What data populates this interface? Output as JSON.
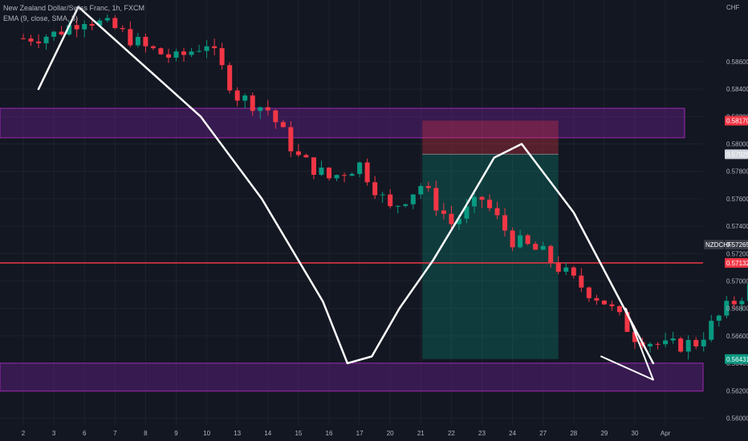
{
  "header": {
    "symbol_line": "New Zealand Dollar/Swiss Franc, 1h, FXCM",
    "indicator_line": "EMA (9, close, SMA, 5)"
  },
  "chart_data": {
    "type": "candlestick",
    "symbol": "NZDCHF",
    "currency": "CHF",
    "timeframe": "1h",
    "ylim": [
      0.5595,
      0.5905
    ],
    "y_ticks": [
      "0.58600",
      "0.58400",
      "0.58200",
      "0.58000",
      "0.57800",
      "0.57600",
      "0.57400",
      "0.57200",
      "0.57000",
      "0.56800",
      "0.56600",
      "0.56400",
      "0.56200",
      "0.56000"
    ],
    "x_ticks": [
      "2",
      "3",
      "6",
      "7",
      "8",
      "9",
      "10",
      "13",
      "14",
      "15",
      "16",
      "17",
      "20",
      "21",
      "22",
      "23",
      "24",
      "27",
      "28",
      "29",
      "30",
      "Apr"
    ],
    "price_path": [
      [
        0,
        0.5877
      ],
      [
        1,
        0.588
      ],
      [
        2,
        0.5892
      ],
      [
        3,
        0.5884
      ],
      [
        4,
        0.587
      ],
      [
        5,
        0.5862
      ],
      [
        6,
        0.5874
      ],
      [
        7,
        0.5835
      ],
      [
        8,
        0.5825
      ],
      [
        9,
        0.579
      ],
      [
        10,
        0.5775
      ],
      [
        11,
        0.5785
      ],
      [
        12,
        0.5752
      ],
      [
        13,
        0.577
      ],
      [
        14,
        0.5742
      ],
      [
        15,
        0.576
      ],
      [
        16,
        0.573
      ],
      [
        17,
        0.572
      ],
      [
        18,
        0.57
      ],
      [
        19,
        0.5685
      ],
      [
        20,
        0.566
      ],
      [
        21,
        0.5652
      ],
      [
        22,
        0.5655
      ],
      [
        23,
        0.568
      ],
      [
        24,
        0.57
      ],
      [
        25,
        0.569
      ],
      [
        26,
        0.571
      ],
      [
        27,
        0.57
      ],
      [
        28,
        0.573
      ],
      [
        29,
        0.577
      ],
      [
        30,
        0.5745
      ],
      [
        31,
        0.579
      ],
      [
        32,
        0.5806
      ],
      [
        33,
        0.5815
      ],
      [
        34,
        0.5795
      ],
      [
        35,
        0.5806
      ],
      [
        36,
        0.578
      ],
      [
        37,
        0.574
      ],
      [
        38,
        0.57265
      ]
    ],
    "annotations": {
      "upper_zone": {
        "top": 0.5826,
        "bottom": 0.58045,
        "color": "#7b1fa2"
      },
      "lower_zone": {
        "top": 0.56401,
        "bottom": 0.56197,
        "color": "#7b1fa2"
      },
      "horizontal_line": {
        "value": 0.57132,
        "color": "#f23645"
      },
      "short_position": {
        "entry": 0.57925,
        "stop": 0.5817,
        "target": 0.56431
      },
      "zigzag": [
        [
          0.5,
          0.584
        ],
        [
          1.8,
          0.59
        ],
        [
          5.8,
          0.582
        ],
        [
          7.8,
          0.576
        ],
        [
          9.8,
          0.5685
        ],
        [
          10.6,
          0.564
        ],
        [
          11.4,
          0.5645
        ],
        [
          12.3,
          0.568
        ],
        [
          13.4,
          0.5715
        ],
        [
          14.4,
          0.5752
        ],
        [
          15.4,
          0.579
        ],
        [
          16.3,
          0.58
        ],
        [
          18.0,
          0.575
        ],
        [
          20.6,
          0.564
        ]
      ],
      "arrow_head": [
        [
          19.7,
          0.568
        ],
        [
          20.6,
          0.5628
        ],
        [
          18.9,
          0.5645
        ]
      ]
    },
    "price_tags": [
      {
        "label": "0.58170",
        "value": 0.5817,
        "color": "#f23645",
        "textcolor": "#ffffff"
      },
      {
        "label": "0.57925",
        "value": 0.57925,
        "color": "#d1d4dc",
        "textcolor": "#131722"
      },
      {
        "label": "0.57265",
        "value": 0.57265,
        "color": "#363a45",
        "textcolor": "#ffffff"
      },
      {
        "label": "0.57132",
        "value": 0.57132,
        "color": "#f23645",
        "textcolor": "#ffffff"
      },
      {
        "label": "0.56431",
        "value": 0.56431,
        "color": "#089981",
        "textcolor": "#ffffff"
      }
    ],
    "symbol_tag": "NZDCHF",
    "colors": {
      "up": "#089981",
      "down": "#f23645",
      "background": "#131722",
      "grid": "#1e222d",
      "text": "#b2b5be"
    }
  }
}
